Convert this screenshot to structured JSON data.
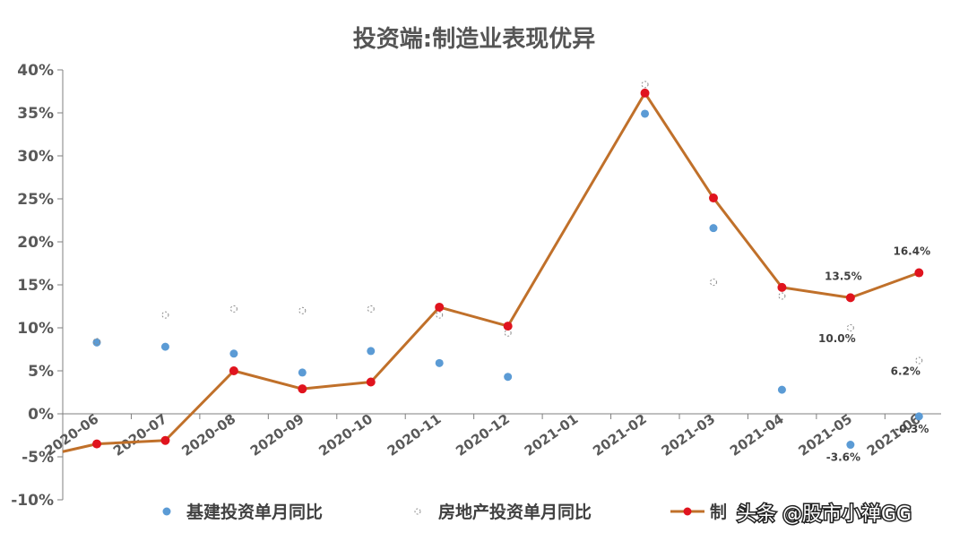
{
  "chart_data": {
    "type": "line",
    "title": "投资端:制造业表现优异",
    "categories": [
      "2020-06",
      "2020-07",
      "2020-08",
      "2020-09",
      "2020-10",
      "2020-11",
      "2020-12",
      "2021-01",
      "2021-02",
      "2021-03",
      "2021-04",
      "2021-05",
      "2021-06"
    ],
    "ylim": [
      -10,
      40
    ],
    "yticks": [
      -10,
      -5,
      0,
      5,
      10,
      15,
      20,
      25,
      30,
      35,
      40
    ],
    "ytick_labels": [
      "-10%",
      "-5%",
      "0%",
      "5%",
      "10%",
      "15%",
      "20%",
      "25%",
      "30%",
      "35%",
      "40%"
    ],
    "series": [
      {
        "name": "基建投资单月同比",
        "style": "scatter",
        "color": "#5b9bd5",
        "values": [
          8.3,
          7.8,
          7.0,
          4.8,
          7.3,
          5.9,
          4.3,
          null,
          34.9,
          21.6,
          2.8,
          -3.6,
          -0.3
        ],
        "labels": [
          null,
          null,
          null,
          null,
          null,
          null,
          null,
          null,
          null,
          null,
          null,
          "-3.6%",
          "-0.3%"
        ]
      },
      {
        "name": "房地产投资单月同比",
        "style": "scatter-hollow",
        "color": "#8c8c8c",
        "values": [
          8.4,
          11.5,
          12.2,
          12.0,
          12.2,
          11.5,
          9.4,
          null,
          38.3,
          15.3,
          13.7,
          10.0,
          6.2
        ],
        "labels": [
          null,
          null,
          null,
          null,
          null,
          null,
          null,
          null,
          null,
          null,
          null,
          "10.0%",
          "6.2%"
        ]
      },
      {
        "name": "制造业投资单月同比",
        "style": "line",
        "color": "#c0702a",
        "marker_color": "#e0141e",
        "values": [
          -3.5,
          -3.1,
          5.0,
          2.9,
          3.7,
          12.4,
          10.2,
          null,
          37.3,
          25.1,
          14.7,
          13.5,
          16.4
        ],
        "labels": [
          null,
          null,
          null,
          null,
          null,
          null,
          null,
          null,
          null,
          null,
          null,
          "13.5%",
          "16.4%"
        ]
      }
    ],
    "legend_position": "bottom",
    "grid": false
  },
  "legend": {
    "item_1": "基建投资单月同比",
    "item_2": "房地产投资单月同比",
    "item_3": "制"
  },
  "watermark": "头条 @股市小禅GG"
}
